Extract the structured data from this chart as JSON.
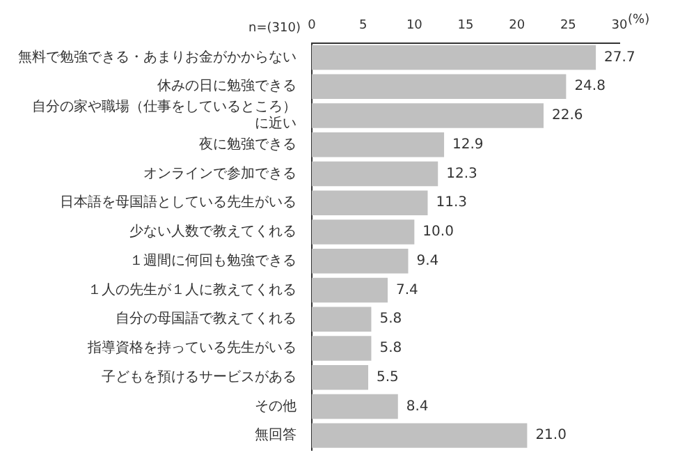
{
  "chart_data": {
    "type": "bar",
    "orientation": "horizontal",
    "xlabel": "(%)",
    "annotations": [
      "n=(310)"
    ],
    "categories": [
      "無料で勉強できる・あまりお金がかからない",
      "休みの日に勉強できる",
      "自分の家や職場（仕事をしているところ）に近い",
      "夜に勉強できる",
      "オンラインで参加できる",
      "日本語を母国語としている先生がいる",
      "少ない人数で教えてくれる",
      "１週間に何回も勉強できる",
      "１人の先生が１人に教えてくれる",
      "自分の母国語で教えてくれる",
      "指導資格を持っている先生がいる",
      "子どもを預けるサービスがある",
      "その他",
      "無回答"
    ],
    "values": [
      27.7,
      24.8,
      22.6,
      12.9,
      12.3,
      11.3,
      10.0,
      9.4,
      7.4,
      5.8,
      5.8,
      5.5,
      8.4,
      21.0
    ],
    "value_labels": [
      "27.7",
      "24.8",
      "22.6",
      "12.9",
      "12.3",
      "11.3",
      "10.0",
      "9.4",
      "7.4",
      "5.8",
      "5.8",
      "5.5",
      "8.4",
      "21.0"
    ],
    "color": "#c0c0c0",
    "xlim": [
      0,
      30
    ],
    "xticks": [
      0,
      5,
      10,
      15,
      20,
      25,
      30
    ],
    "grid": false,
    "legend": false
  }
}
